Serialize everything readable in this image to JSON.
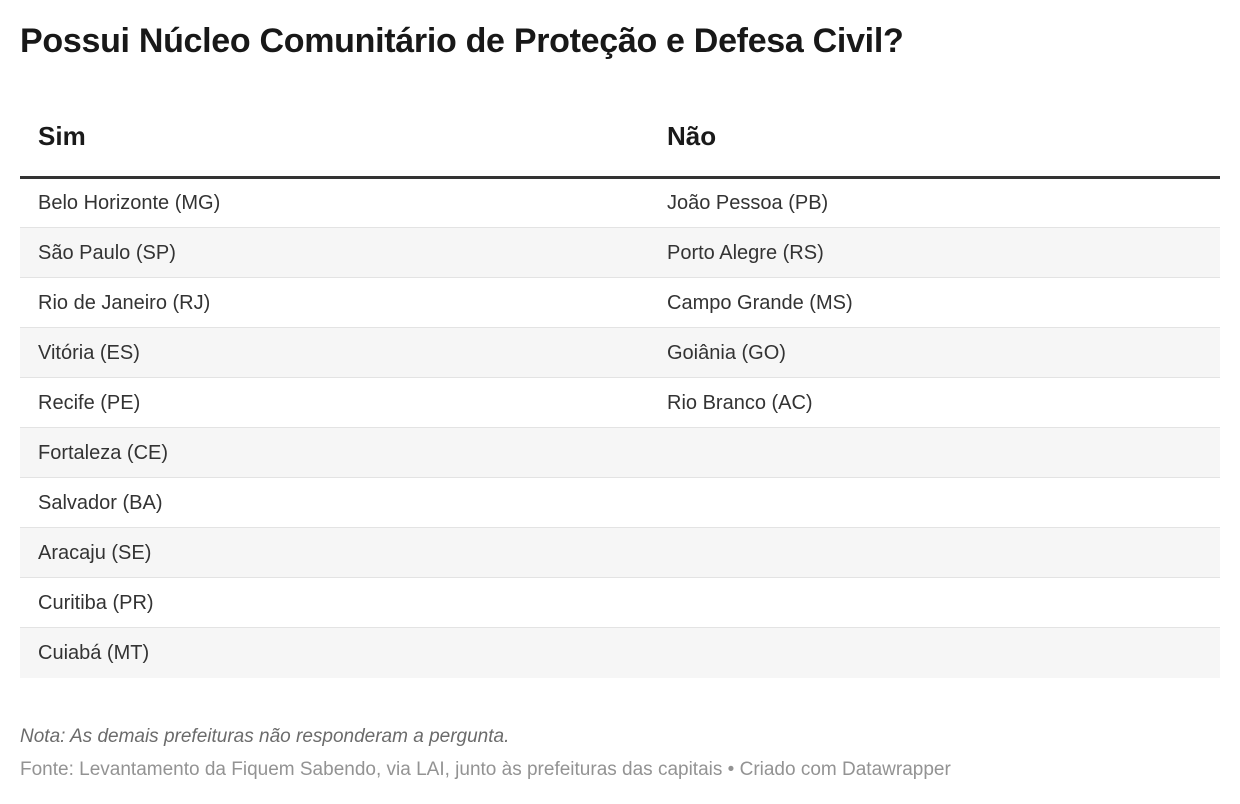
{
  "title": "Possui Núcleo Comunitário de Proteção e Defesa Civil?",
  "table": {
    "columns": [
      "Sim",
      "Não"
    ],
    "rows": [
      [
        "Belo Horizonte (MG)",
        "João Pessoa (PB)"
      ],
      [
        "São Paulo (SP)",
        "Porto Alegre (RS)"
      ],
      [
        "Rio de Janeiro (RJ)",
        "Campo Grande (MS)"
      ],
      [
        "Vitória (ES)",
        "Goiânia (GO)"
      ],
      [
        "Recife (PE)",
        "Rio Branco (AC)"
      ],
      [
        "Fortaleza (CE)",
        ""
      ],
      [
        "Salvador (BA)",
        ""
      ],
      [
        "Aracaju (SE)",
        ""
      ],
      [
        "Curitiba (PR)",
        ""
      ],
      [
        "Cuiabá (MT)",
        ""
      ]
    ]
  },
  "footer": {
    "note": "Nota: As demais prefeituras não responderam a pergunta.",
    "source": "Fonte: Levantamento da Fiquem Sabendo, via LAI, junto às prefeituras das capitais",
    "separator": " • ",
    "attribution": "Criado com Datawrapper"
  },
  "colors": {
    "title_text": "#181818",
    "body_text": "#333333",
    "header_rule": "#333333",
    "row_stripe": "#f6f6f6",
    "row_border": "#e3e3e3",
    "note_text": "#6b6b6b",
    "source_text": "#939393"
  },
  "chart_data": {
    "type": "table",
    "title": "Possui Núcleo Comunitário de Proteção e Defesa Civil?",
    "columns": [
      "Sim",
      "Não"
    ],
    "rows": [
      [
        "Belo Horizonte (MG)",
        "João Pessoa (PB)"
      ],
      [
        "São Paulo (SP)",
        "Porto Alegre (RS)"
      ],
      [
        "Rio de Janeiro (RJ)",
        "Campo Grande (MS)"
      ],
      [
        "Vitória (ES)",
        "Goiânia (GO)"
      ],
      [
        "Recife (PE)",
        "Rio Branco (AC)"
      ],
      [
        "Fortaleza (CE)",
        ""
      ],
      [
        "Salvador (BA)",
        ""
      ],
      [
        "Aracaju (SE)",
        ""
      ],
      [
        "Curitiba (PR)",
        ""
      ],
      [
        "Cuiabá (MT)",
        ""
      ]
    ],
    "counts": {
      "Sim": 10,
      "Não": 5
    },
    "note": "Nota: As demais prefeituras não responderam a pergunta.",
    "source": "Fonte: Levantamento da Fiquem Sabendo, via LAI, junto às prefeituras das capitais • Criado com Datawrapper",
    "layout_hints": {
      "striped_rows": true,
      "header_rule": true,
      "grid": "horizontal-only"
    }
  }
}
